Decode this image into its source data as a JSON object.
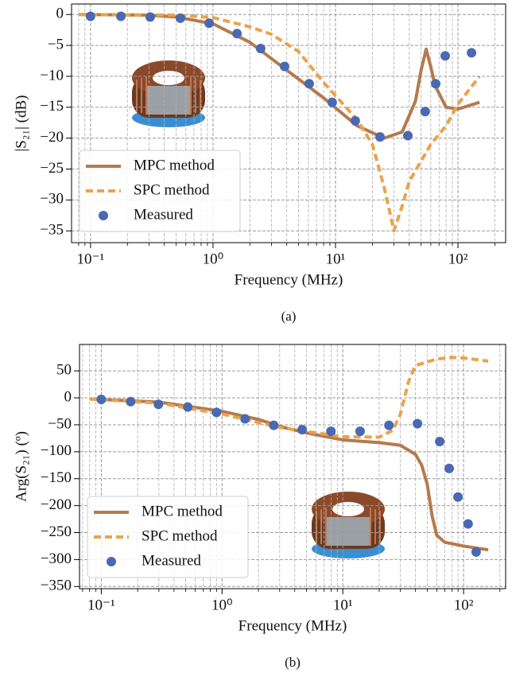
{
  "chart_data": [
    {
      "type": "line",
      "caption": "(a)",
      "x_label": "Frequency (MHz)",
      "y_label": "|S₂₁| (dB)",
      "xscale": "log",
      "xlim": [
        0.07,
        245
      ],
      "ylim": [
        -36.9,
        1.7
      ],
      "xticks": [
        {
          "value": 0.1,
          "label": "10⁻¹"
        },
        {
          "value": 1,
          "label": "10⁰"
        },
        {
          "value": 10,
          "label": "10¹"
        },
        {
          "value": 100,
          "label": "10²"
        }
      ],
      "minor_xticks": [
        0.08,
        0.09,
        0.2,
        0.3,
        0.4,
        0.5,
        0.6,
        0.7,
        0.8,
        0.9,
        2,
        3,
        4,
        5,
        6,
        7,
        8,
        9,
        20,
        30,
        40,
        50,
        60,
        70,
        80,
        90,
        200
      ],
      "yticks": [
        {
          "value": -35,
          "label": "−35"
        },
        {
          "value": -30,
          "label": "−30"
        },
        {
          "value": -25,
          "label": "−25"
        },
        {
          "value": -20,
          "label": "−20"
        },
        {
          "value": -15,
          "label": "−15"
        },
        {
          "value": -10,
          "label": "−10"
        },
        {
          "value": -5,
          "label": "−5"
        },
        0
      ],
      "grid": true,
      "legend": "lower left",
      "series": [
        {
          "name": "MPC method",
          "style": "solid",
          "color": "#b47a4e",
          "x": [
            0.08,
            0.3,
            0.5,
            1,
            2,
            4,
            8,
            15,
            25,
            35,
            45,
            50,
            55,
            60,
            65,
            80,
            100,
            150
          ],
          "values": [
            0,
            -0.1,
            -0.4,
            -1.5,
            -4.5,
            -9,
            -13.5,
            -18,
            -20,
            -19,
            -14,
            -9,
            -5.6,
            -8.5,
            -11.5,
            -15,
            -15.3,
            -14.2
          ]
        },
        {
          "name": "SPC method",
          "style": "dashed",
          "color": "#e9a34c",
          "x": [
            0.08,
            0.5,
            1,
            2,
            3,
            5,
            8,
            15,
            20,
            25,
            30,
            35,
            40,
            60,
            80,
            100,
            150
          ],
          "values": [
            0,
            -0.1,
            -0.5,
            -2,
            -3.2,
            -6,
            -11,
            -17,
            -21,
            -28,
            -35,
            -31,
            -27,
            -21,
            -18,
            -14.5,
            -10
          ]
        },
        {
          "name": "Measured",
          "style": "markers",
          "color": "#4a69b3",
          "x": [
            0.1,
            0.177,
            0.307,
            0.542,
            0.93,
            1.57,
            2.45,
            3.84,
            6.1,
            9.4,
            14.5,
            23.1,
            39,
            54,
            65.8,
            78.7,
            129
          ],
          "values": [
            -0.3,
            -0.3,
            -0.4,
            -0.6,
            -1.4,
            -3.1,
            -5.5,
            -8.4,
            -11.2,
            -14.2,
            -17.2,
            -19.8,
            -19.6,
            -15.7,
            -11.2,
            -6.7,
            -6.2
          ]
        }
      ]
    },
    {
      "type": "line",
      "caption": "(b)",
      "x_label": "Frequency (MHz)",
      "y_label": "Arg(S₂₁) (º)",
      "xscale": "log",
      "xlim": [
        0.066,
        223
      ],
      "ylim": [
        -354,
        99
      ],
      "xticks": [
        {
          "value": 0.1,
          "label": "10⁻¹"
        },
        {
          "value": 1,
          "label": "10⁰"
        },
        {
          "value": 10,
          "label": "10¹"
        },
        {
          "value": 100,
          "label": "10²"
        }
      ],
      "minor_xticks": [
        0.07,
        0.08,
        0.09,
        0.2,
        0.3,
        0.4,
        0.5,
        0.6,
        0.7,
        0.8,
        0.9,
        2,
        3,
        4,
        5,
        6,
        7,
        8,
        9,
        20,
        30,
        40,
        50,
        60,
        70,
        80,
        90,
        200
      ],
      "yticks": [
        {
          "value": -350,
          "label": "−350"
        },
        {
          "value": -300,
          "label": "−300"
        },
        {
          "value": -250,
          "label": "−250"
        },
        {
          "value": -200,
          "label": "−200"
        },
        {
          "value": -150,
          "label": "−150"
        },
        {
          "value": -100,
          "label": "−100"
        },
        {
          "value": -50,
          "label": "−50"
        },
        0,
        50
      ],
      "grid": true,
      "legend": "lower left",
      "series": [
        {
          "name": "MPC method",
          "style": "solid",
          "color": "#b47a4e",
          "x": [
            0.08,
            0.3,
            1,
            2,
            3,
            5,
            10,
            20,
            30,
            40,
            45,
            50,
            55,
            60,
            70,
            100,
            160
          ],
          "values": [
            -2,
            -8,
            -25,
            -40,
            -53,
            -65,
            -78,
            -83,
            -88,
            -105,
            -125,
            -160,
            -220,
            -255,
            -268,
            -275,
            -282
          ]
        },
        {
          "name": "SPC method",
          "style": "dashed",
          "color": "#e9a34c",
          "x": [
            0.08,
            0.3,
            1,
            3,
            6,
            10,
            20,
            26,
            30,
            35,
            40,
            60,
            80,
            100,
            160
          ],
          "values": [
            -2,
            -10,
            -30,
            -55,
            -65,
            -72,
            -73,
            -60,
            -30,
            30,
            60,
            72,
            75,
            74,
            68
          ]
        },
        {
          "name": "Measured",
          "style": "markers",
          "color": "#4a69b3",
          "x": [
            0.1,
            0.175,
            0.297,
            0.52,
            0.9,
            1.55,
            2.68,
            4.6,
            7.97,
            13.9,
            24.1,
            41.5,
            63.5,
            76,
            89.9,
            109,
            127
          ],
          "values": [
            -3,
            -7,
            -12,
            -17,
            -27,
            -39,
            -51,
            -59,
            -62,
            -62,
            -51,
            -48,
            -81,
            -131,
            -184,
            -234,
            -286
          ]
        }
      ]
    }
  ]
}
